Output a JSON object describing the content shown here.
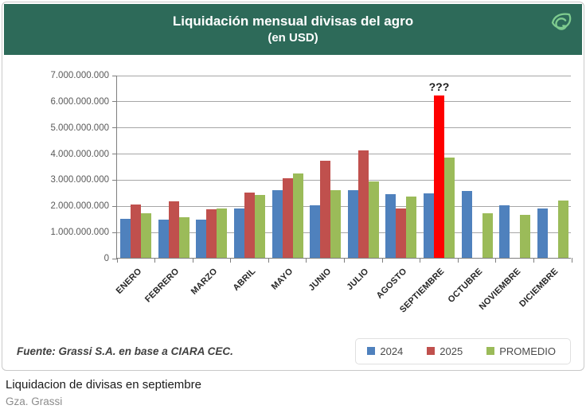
{
  "header": {
    "title_line1": "Liquidación mensual divisas del agro",
    "title_line2": "(en USD)",
    "bg_color": "#2d6a59",
    "logo_icon": "grassi-leaf-logo",
    "logo_color": "#7ecb8f"
  },
  "chart_data": {
    "type": "bar",
    "title": "Liquidación mensual divisas del agro (en USD)",
    "xlabel": "",
    "ylabel": "",
    "ylim": [
      0,
      7000000000
    ],
    "ytick_step": 1000000000,
    "grid": true,
    "legend_position": "bottom-right",
    "categories": [
      "ENERO",
      "FEBRERO",
      "MARZO",
      "ABRIL",
      "MAYO",
      "JUNIO",
      "JULIO",
      "AGOSTO",
      "SEPTIEMBRE",
      "OCTUBRE",
      "NOVIEMBRE",
      "DICIEMBRE"
    ],
    "series": [
      {
        "name": "2024",
        "color": "#4f81bd",
        "values": [
          1500000000,
          1470000000,
          1450000000,
          1900000000,
          2580000000,
          2000000000,
          2580000000,
          2430000000,
          2480000000,
          2550000000,
          2000000000,
          1900000000
        ]
      },
      {
        "name": "2025",
        "color": "#c0504d",
        "values": [
          2050000000,
          2150000000,
          1850000000,
          2500000000,
          3050000000,
          3720000000,
          4100000000,
          1900000000,
          6200000000,
          null,
          null,
          null
        ]
      },
      {
        "name": "PROMEDIO",
        "color": "#9bbb59",
        "values": [
          1700000000,
          1550000000,
          1900000000,
          2420000000,
          3230000000,
          2580000000,
          2920000000,
          2350000000,
          3850000000,
          1700000000,
          1650000000,
          2200000000
        ]
      }
    ],
    "highlight": {
      "series": "2025",
      "category": "SEPTIEMBRE",
      "color": "#fe0000",
      "annotation": "???"
    }
  },
  "footer": {
    "source": "Fuente: Grassi S.A. en base a CIARA CEC."
  },
  "caption": {
    "title": "Liquidacion de divisas en septiembre",
    "credit": "Gza. Grassi"
  }
}
